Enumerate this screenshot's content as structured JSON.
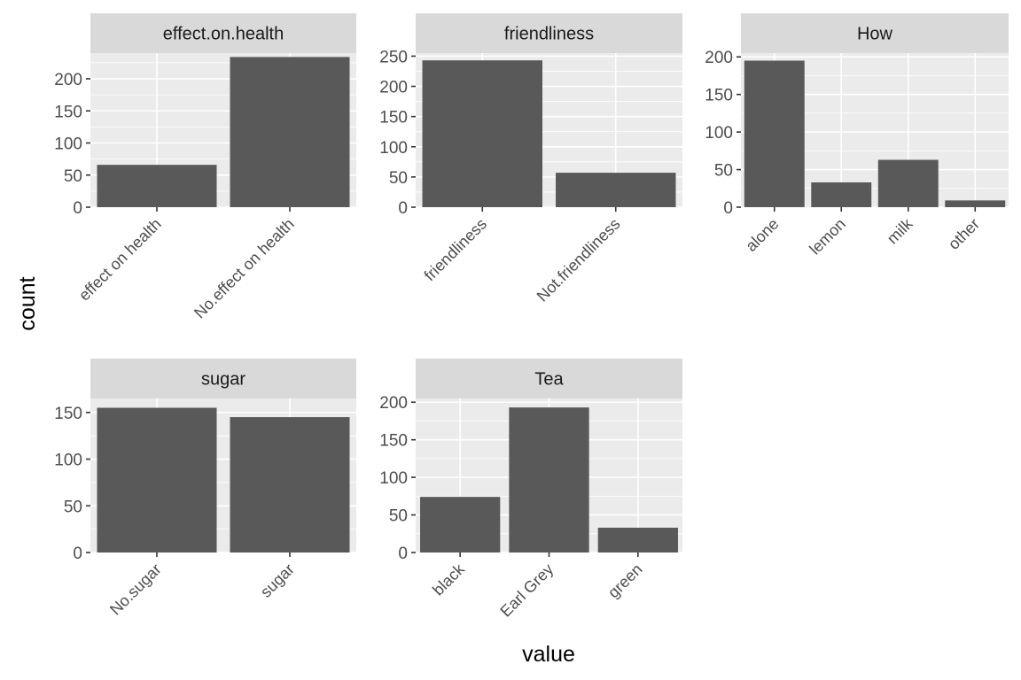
{
  "axes": {
    "xlabel": "value",
    "ylabel": "count"
  },
  "chart_data": [
    {
      "type": "bar",
      "title": "effect.on.health",
      "categories": [
        "effect on health",
        "No.effect on health"
      ],
      "values": [
        66,
        234
      ],
      "ylim": [
        0,
        240
      ],
      "yticks": [
        0,
        50,
        100,
        150,
        200
      ],
      "grid": true
    },
    {
      "type": "bar",
      "title": "friendliness",
      "categories": [
        "friendliness",
        "Not.friendliness"
      ],
      "values": [
        243,
        57
      ],
      "ylim": [
        0,
        255
      ],
      "yticks": [
        0,
        50,
        100,
        150,
        200,
        250
      ],
      "grid": true
    },
    {
      "type": "bar",
      "title": "How",
      "categories": [
        "alone",
        "lemon",
        "milk",
        "other"
      ],
      "values": [
        195,
        33,
        63,
        9
      ],
      "ylim": [
        0,
        205
      ],
      "yticks": [
        0,
        50,
        100,
        150,
        200
      ],
      "grid": true
    },
    {
      "type": "bar",
      "title": "sugar",
      "categories": [
        "No.sugar",
        "sugar"
      ],
      "values": [
        155,
        145
      ],
      "ylim": [
        0,
        165
      ],
      "yticks": [
        0,
        50,
        100,
        150
      ],
      "grid": true
    },
    {
      "type": "bar",
      "title": "Tea",
      "categories": [
        "black",
        "Earl Grey",
        "green"
      ],
      "values": [
        74,
        193,
        33
      ],
      "ylim": [
        0,
        205
      ],
      "yticks": [
        0,
        50,
        100,
        150,
        200
      ],
      "grid": true
    }
  ]
}
